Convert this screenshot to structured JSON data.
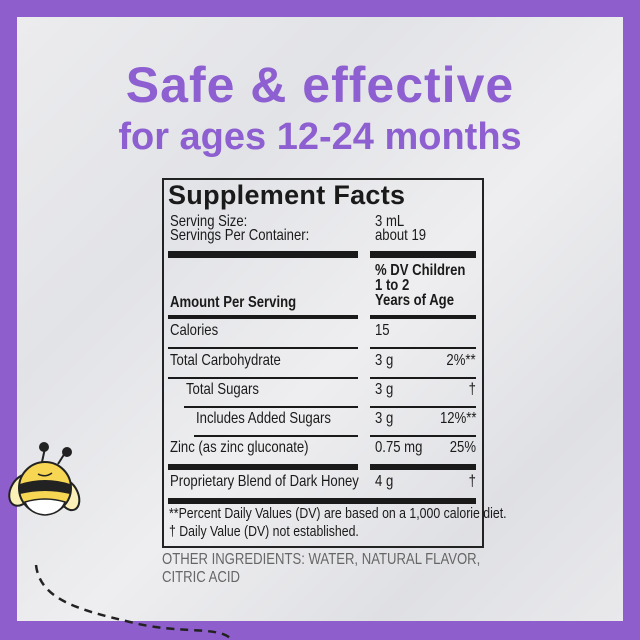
{
  "headline": {
    "line1": "Safe & effective",
    "line2": "for ages 12-24 months"
  },
  "colors": {
    "brand_purple": "#8e5fcc",
    "text": "#1a1a1a"
  },
  "mascot": {
    "icon": "bee-mascot-icon"
  },
  "facts": {
    "title": "Supplement Facts",
    "serving_size_label": "Serving Size:",
    "serving_size": "3 mL",
    "servings_label": "Servings Per Container:",
    "servings": "about 19",
    "amount_header": "Amount Per Serving",
    "dv_header": [
      "% DV Children",
      "1 to 2",
      "Years of Age"
    ],
    "rows": [
      {
        "name": "Calories",
        "amount": "15",
        "dv": ""
      },
      {
        "name": "Total Carbohydrate",
        "amount": "3 g",
        "dv": "2%**"
      },
      {
        "name": "Total Sugars",
        "amount": "3 g",
        "dv": "†"
      },
      {
        "name": "Includes Added Sugars",
        "amount": "3 g",
        "dv": "12%**"
      },
      {
        "name": "Zinc (as zinc gluconate)",
        "amount": "0.75 mg",
        "dv": "25%"
      },
      {
        "name": "Proprietary Blend of Dark Honey",
        "amount": "4 g",
        "dv": "†"
      }
    ],
    "footnotes": [
      "**Percent Daily Values (DV) are based on a 1,000 calorie diet.",
      "† Daily Value (DV) not established."
    ]
  },
  "other_ingredients": [
    "OTHER INGREDIENTS: WATER, NATURAL FLAVOR,",
    "CITRIC ACID"
  ]
}
